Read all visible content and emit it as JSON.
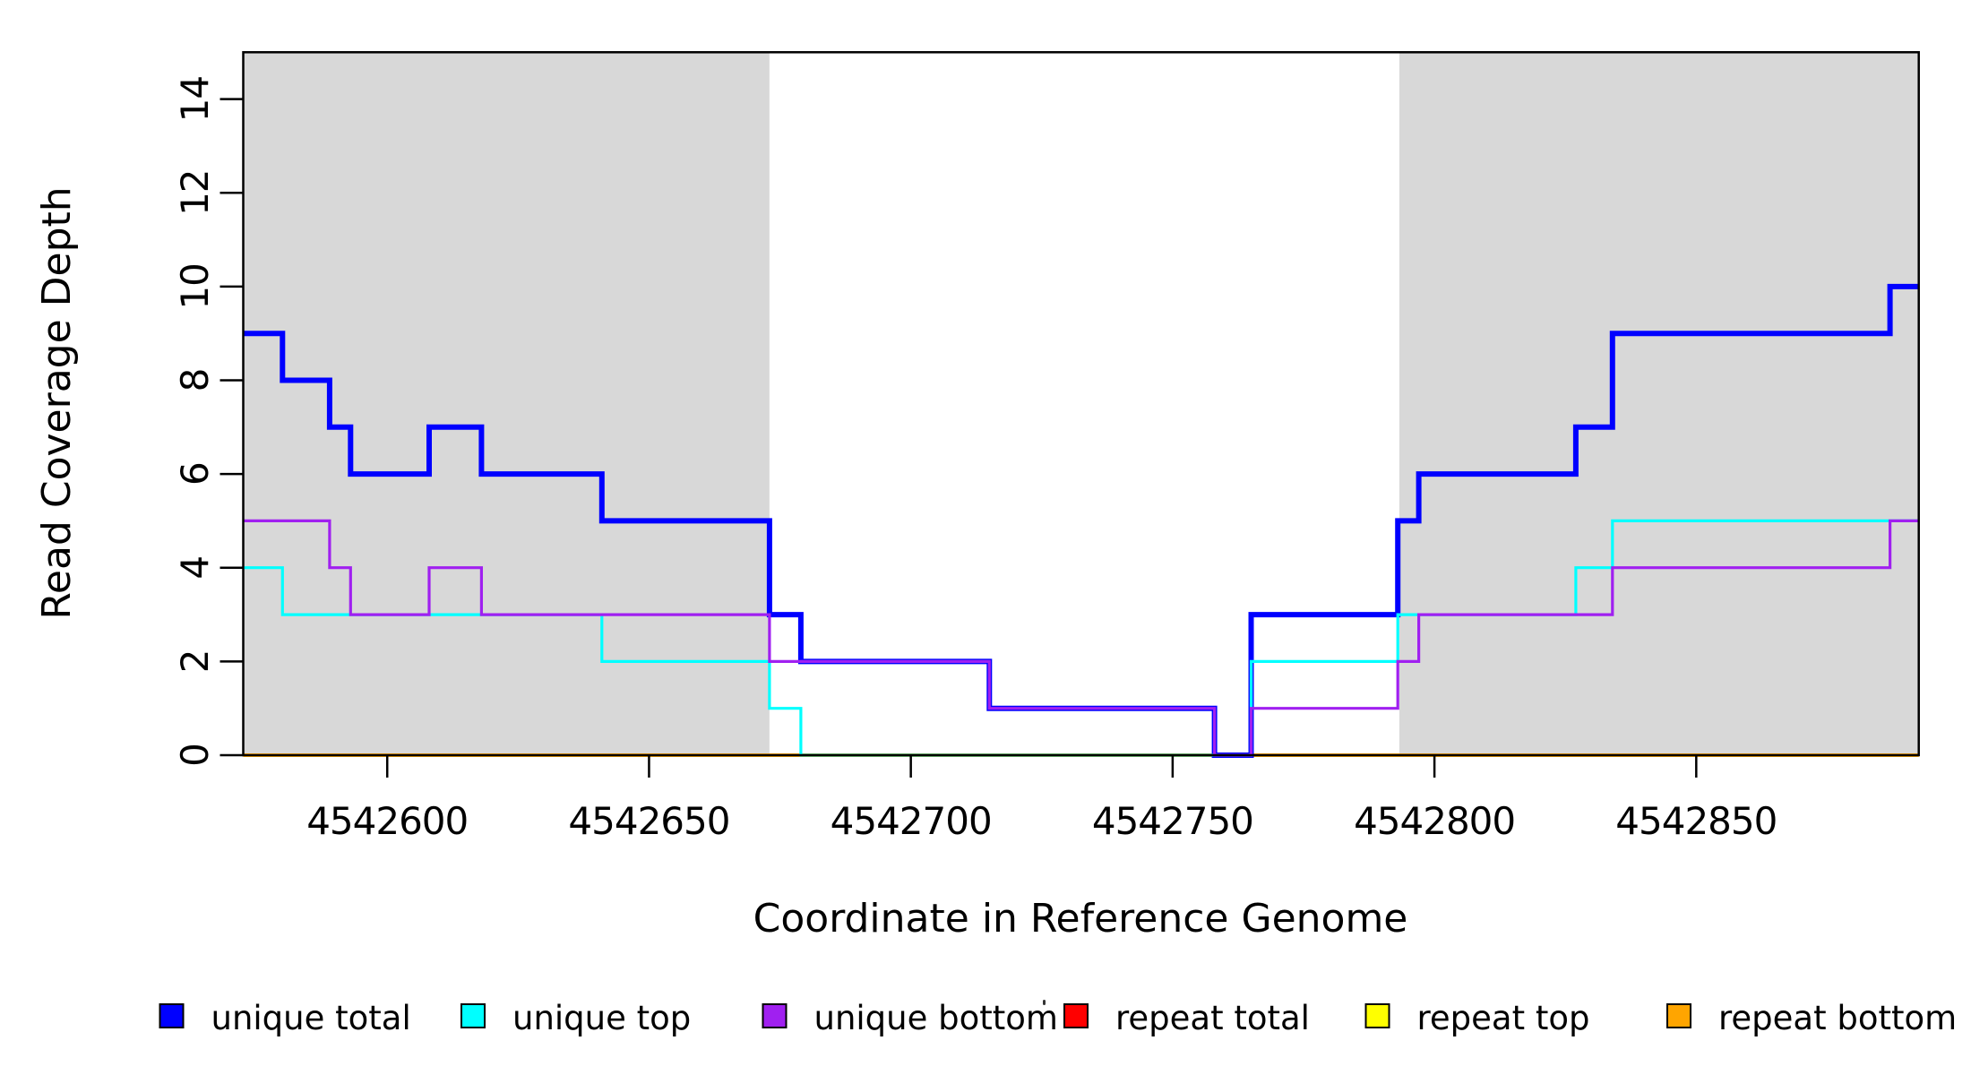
{
  "chart_data": {
    "type": "line",
    "subtype": "step-coverage-plot",
    "title": "",
    "xlabel": "Coordinate in Reference Genome",
    "ylabel": "Read Coverage Depth",
    "xlim": [
      4542572.5,
      4542892.5
    ],
    "ylim": [
      0,
      15
    ],
    "x_ticks": [
      4542600,
      4542650,
      4542700,
      4542750,
      4542800,
      4542850
    ],
    "y_ticks": [
      0,
      2,
      4,
      6,
      8,
      10,
      12,
      14
    ],
    "grid": false,
    "legend_position": "bottom",
    "background_color": "#ffffff",
    "shaded_band_color": "#d8d8d8",
    "shaded_regions": [
      {
        "name": "left-gray-band",
        "from": 4542572.5,
        "to": 4542673.0
      },
      {
        "name": "right-gray-band",
        "from": 4542793.3,
        "to": 4542892.5
      }
    ],
    "series": [
      {
        "name": "repeat total",
        "color": "#ff0000",
        "width": 3,
        "steps": [
          [
            4542572.5,
            0
          ]
        ]
      },
      {
        "name": "repeat top",
        "color": "#ffff00",
        "width": 3,
        "steps": [
          [
            4542572.5,
            0
          ]
        ]
      },
      {
        "name": "repeat bottom",
        "color": "#ffa500",
        "width": 4,
        "steps": [
          [
            4542572.5,
            0
          ]
        ]
      },
      {
        "name": "unique total",
        "color": "#0000ff",
        "width": 6,
        "steps": [
          [
            4542572.5,
            9
          ],
          [
            4542580,
            8
          ],
          [
            4542589,
            7
          ],
          [
            4542593,
            6
          ],
          [
            4542608,
            7
          ],
          [
            4542618,
            6
          ],
          [
            4542641,
            5
          ],
          [
            4542673,
            3
          ],
          [
            4542679,
            2
          ],
          [
            4542715,
            1
          ],
          [
            4542758,
            0
          ],
          [
            4542765,
            3
          ],
          [
            4542793,
            5
          ],
          [
            4542797,
            6
          ],
          [
            4542827,
            7
          ],
          [
            4542834,
            9
          ],
          [
            4542887,
            10
          ]
        ]
      },
      {
        "name": "unique top",
        "color": "#00ffff",
        "width": 3.2,
        "steps": [
          [
            4542572.5,
            4
          ],
          [
            4542580,
            3
          ],
          [
            4542641,
            2
          ],
          [
            4542673,
            1
          ],
          [
            4542679,
            0
          ],
          [
            4542765,
            2
          ],
          [
            4542793,
            3
          ],
          [
            4542827,
            4
          ],
          [
            4542834,
            5
          ]
        ]
      },
      {
        "name": "unique bottom",
        "color": "#a020f0",
        "width": 3.2,
        "steps": [
          [
            4542572.5,
            5
          ],
          [
            4542589,
            4
          ],
          [
            4542593,
            3
          ],
          [
            4542608,
            4
          ],
          [
            4542618,
            3
          ],
          [
            4542673,
            2
          ],
          [
            4542715,
            1
          ],
          [
            4542758,
            0
          ],
          [
            4542765,
            1
          ],
          [
            4542793,
            2
          ],
          [
            4542797,
            3
          ],
          [
            4542834,
            4
          ],
          [
            4542887,
            5
          ]
        ]
      }
    ],
    "legend": {
      "items": [
        {
          "label": "unique total",
          "color": "#0000ff"
        },
        {
          "label": "unique top",
          "color": "#00ffff"
        },
        {
          "label": "unique bottom",
          "color": "#a020f0"
        },
        {
          "label": "repeat total",
          "color": "#ff0000"
        },
        {
          "label": "repeat top",
          "color": "#ffff00"
        },
        {
          "label": "repeat bottom",
          "color": "#ffa500"
        }
      ]
    }
  }
}
